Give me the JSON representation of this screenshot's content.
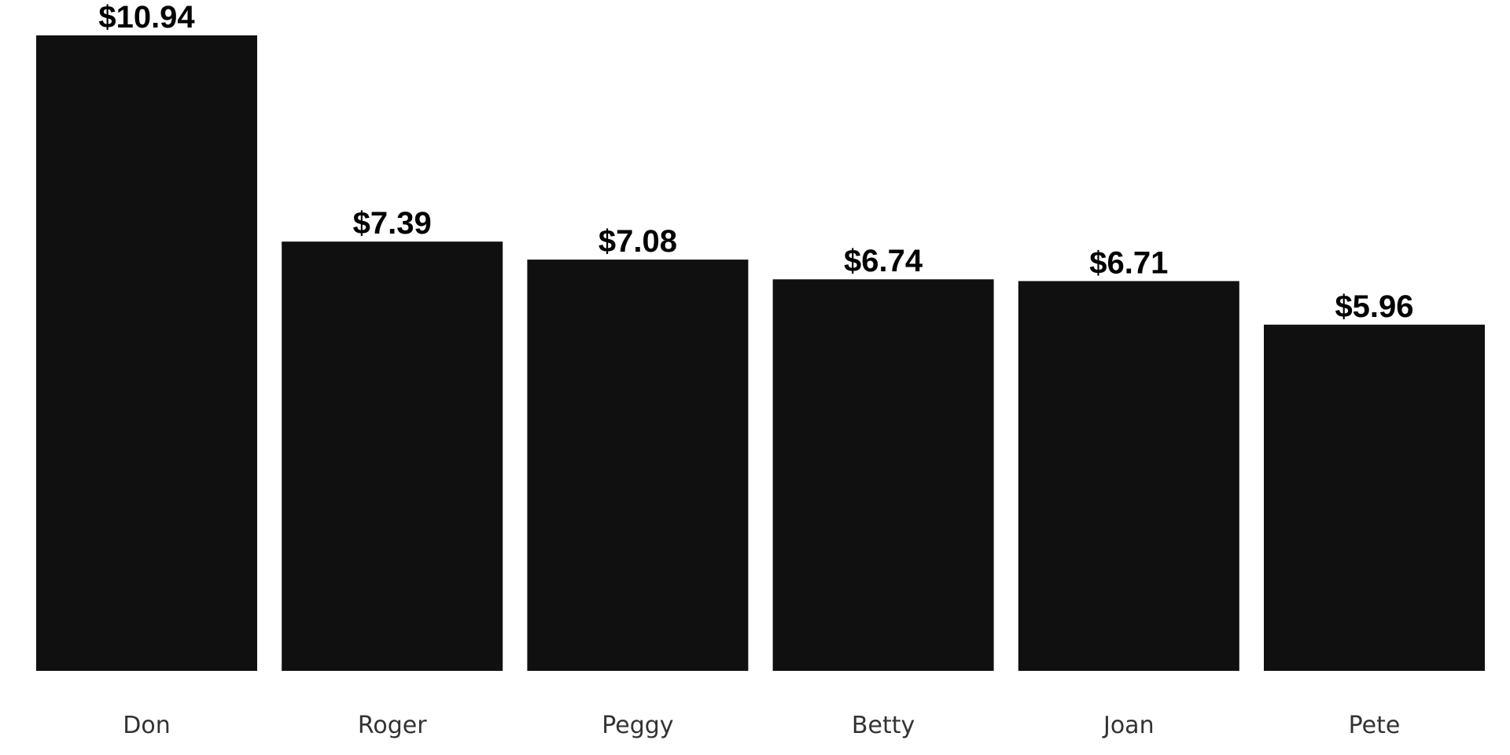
{
  "chart_data": {
    "type": "bar",
    "categories": [
      "Don",
      "Roger",
      "Peggy",
      "Betty",
      "Joan",
      "Pete"
    ],
    "values": [
      10.94,
      7.39,
      7.08,
      6.74,
      6.71,
      5.96
    ],
    "value_labels": [
      "$10.94",
      "$7.39",
      "$7.08",
      "$6.74",
      "$6.71",
      "$5.96"
    ],
    "ylim": [
      0,
      10.94
    ],
    "grid": false,
    "colors": {
      "bar": "#101010",
      "value_label": "#000000",
      "category_label": "#333333"
    }
  }
}
